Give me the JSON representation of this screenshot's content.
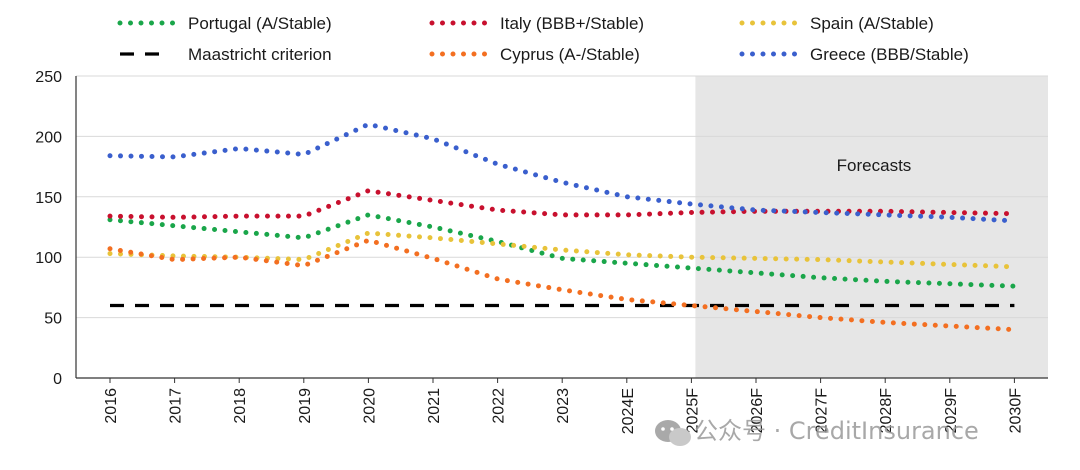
{
  "chart_data": {
    "type": "line",
    "title": "",
    "xlabel": "",
    "ylabel": "",
    "categories": [
      "2016",
      "2017",
      "2018",
      "2019",
      "2020",
      "2021",
      "2022",
      "2023",
      "2024E",
      "2025F",
      "2026F",
      "2027F",
      "2028F",
      "2029F",
      "2030F"
    ],
    "ylim": [
      0,
      250
    ],
    "yticks": [
      0,
      50,
      100,
      150,
      200,
      250
    ],
    "grid": true,
    "legend_position": "top",
    "shaded_region": {
      "from": "2025F",
      "to": "2030F",
      "color": "#e6e6e6",
      "label": "Forecasts"
    },
    "series": [
      {
        "name": "Portugal (A/Stable)",
        "color": "#1aa64a",
        "style": "dotted",
        "values": [
          131,
          126,
          121,
          116,
          135,
          125,
          113,
          99,
          95,
          91,
          87,
          83,
          80,
          78,
          76
        ]
      },
      {
        "name": "Italy (BBB+/Stable)",
        "color": "#c8102e",
        "style": "dotted",
        "values": [
          134,
          133,
          134,
          134,
          155,
          147,
          139,
          135,
          135,
          137,
          138,
          138,
          138,
          137,
          136
        ]
      },
      {
        "name": "Spain (A/Stable)",
        "color": "#e8c33a",
        "style": "dotted",
        "values": [
          103,
          101,
          100,
          98,
          120,
          116,
          111,
          106,
          102,
          100,
          99,
          98,
          96,
          94,
          92
        ]
      },
      {
        "name": "Maastricht criterion",
        "color": "#000000",
        "style": "dashed",
        "values": [
          60,
          60,
          60,
          60,
          60,
          60,
          60,
          60,
          60,
          60,
          60,
          60,
          60,
          60,
          60
        ]
      },
      {
        "name": "Cyprus (A-/Stable)",
        "color": "#f36f21",
        "style": "dotted",
        "values": [
          107,
          98,
          100,
          93,
          114,
          99,
          82,
          73,
          65,
          60,
          55,
          50,
          46,
          43,
          40
        ]
      },
      {
        "name": "Greece (BBB/Stable)",
        "color": "#3a5fcd",
        "style": "dotted",
        "values": [
          184,
          183,
          190,
          185,
          210,
          198,
          177,
          162,
          150,
          144,
          139,
          137,
          135,
          133,
          130
        ]
      }
    ]
  },
  "watermark": "公众号 · CreditInsurance"
}
